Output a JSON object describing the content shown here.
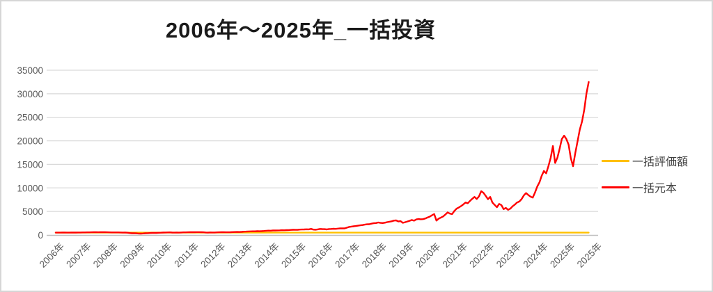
{
  "chart_data": {
    "type": "line",
    "title": "2006年～2025年_一括投資",
    "xlabel": "",
    "ylabel": "",
    "ylim": [
      0,
      35000
    ],
    "y_ticks": [
      0,
      5000,
      10000,
      15000,
      20000,
      25000,
      30000,
      35000
    ],
    "x_tick_labels": [
      "2006年",
      "2007年",
      "2008年",
      "2009年",
      "2010年",
      "2011年",
      "2012年",
      "2013年",
      "2014年",
      "2015年",
      "2016年",
      "2017年",
      "2018年",
      "2019年",
      "2020年",
      "2021年",
      "2022年",
      "2023年",
      "2024年",
      "2025年",
      "2025年"
    ],
    "grid": "horizontal",
    "legend_position": "right",
    "colors": {
      "gridline": "#d9d9d9",
      "axis_line": "#bfbfbf",
      "axis_text": "#595959",
      "title_text": "#1a1a1a",
      "valuation": "#ffc000",
      "principal": "#ff0000"
    },
    "series": [
      {
        "name": "一括評価額",
        "color": "#ffc000",
        "x": [
          2006.0,
          2025.83
        ],
        "values": [
          500,
          500
        ]
      },
      {
        "name": "一括元本",
        "color": "#ff0000",
        "x_start": 2006.0,
        "x_step_years": 0.08333,
        "values": [
          500,
          506,
          497,
          511,
          516,
          504,
          498,
          513,
          519,
          524,
          531,
          538,
          548,
          542,
          557,
          564,
          578,
          589,
          597,
          575,
          589,
          603,
          593,
          582,
          563,
          549,
          542,
          553,
          547,
          528,
          507,
          513,
          482,
          413,
          372,
          377,
          352,
          309,
          297,
          332,
          364,
          388,
          415,
          440,
          456,
          444,
          467,
          493,
          522,
          533,
          548,
          560,
          524,
          498,
          516,
          507,
          536,
          560,
          566,
          576,
          585,
          600,
          594,
          612,
          606,
          592,
          580,
          528,
          508,
          540,
          535,
          525,
          562,
          575,
          590,
          585,
          570,
          580,
          595,
          615,
          635,
          645,
          640,
          668,
          702,
          726,
          748,
          768,
          785,
          776,
          812,
          799,
          828,
          863,
          900,
          930,
          922,
          960,
          967,
          973,
          990,
          1013,
          1008,
          1036,
          1053,
          1075,
          1103,
          1098,
          1087,
          1150,
          1161,
          1184,
          1218,
          1200,
          1298,
          1154,
          1126,
          1200,
          1280,
          1255,
          1241,
          1178,
          1266,
          1291,
          1322,
          1303,
          1366,
          1404,
          1422,
          1410,
          1554,
          1716,
          1782,
          1848,
          1904,
          1974,
          2058,
          2114,
          2198,
          2268,
          2296,
          2408,
          2492,
          2534,
          2660,
          2576,
          2534,
          2618,
          2730,
          2814,
          2912,
          3052,
          3108,
          2884,
          2940,
          2580,
          2720,
          2867,
          3013,
          3187,
          3040,
          3307,
          3400,
          3333,
          3360,
          3493,
          3707,
          3893,
          4200,
          4450,
          3050,
          3450,
          3700,
          3950,
          4350,
          4800,
          4550,
          4450,
          5100,
          5600,
          5850,
          6150,
          6500,
          6900,
          6750,
          7250,
          7700,
          8100,
          7650,
          8200,
          9300,
          8950,
          8300,
          7600,
          8100,
          6900,
          6400,
          5900,
          6600,
          6350,
          5500,
          5750,
          5350,
          5600,
          6100,
          6450,
          6900,
          7100,
          7600,
          8400,
          8900,
          8500,
          8150,
          7950,
          9000,
          10300,
          11200,
          12600,
          13600,
          13100,
          14600,
          16400,
          18900,
          15300,
          16400,
          18300,
          20400,
          21100,
          20400,
          19200,
          16300,
          14600,
          17400,
          19900,
          22400,
          24100,
          26600,
          30100,
          32500
        ]
      }
    ]
  }
}
